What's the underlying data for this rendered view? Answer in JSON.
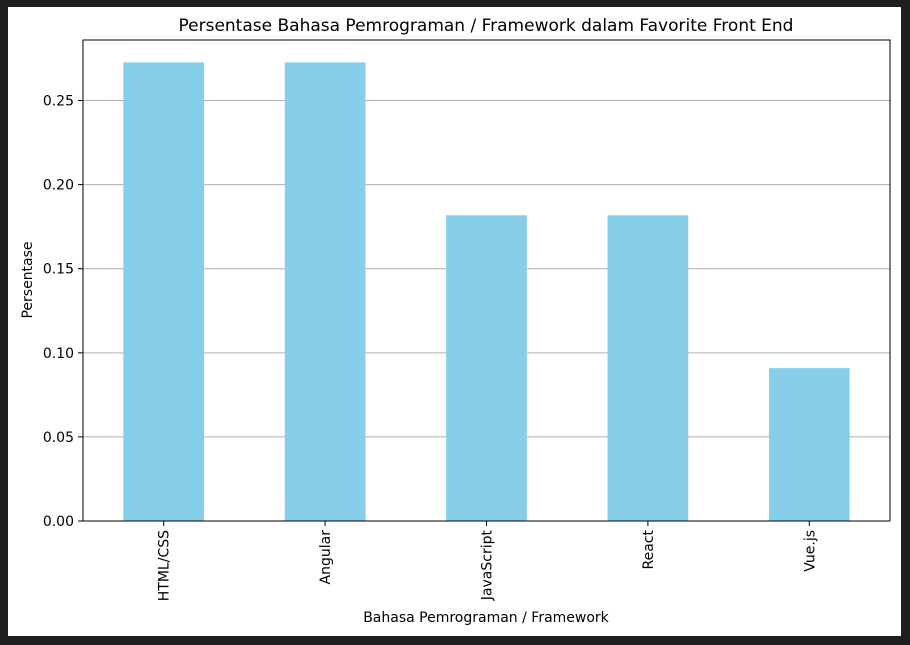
{
  "chart_data": {
    "type": "bar",
    "title": "Persentase Bahasa Pemrograman / Framework dalam Favorite Front End",
    "xlabel": "Bahasa Pemrograman / Framework",
    "ylabel": "Persentase",
    "categories": [
      "HTML/CSS",
      "Angular",
      "JavaScript",
      "React",
      "Vue.js"
    ],
    "values": [
      0.2727,
      0.2727,
      0.1818,
      0.1818,
      0.0909
    ],
    "ylim": [
      0,
      0.286
    ],
    "yticks": [
      0.0,
      0.05,
      0.1,
      0.15,
      0.2,
      0.25
    ],
    "ytick_labels": [
      "0.00",
      "0.05",
      "0.10",
      "0.15",
      "0.20",
      "0.25"
    ],
    "grid": "y-axis",
    "bar_color": "#87ceeb",
    "grid_color": "#b0b0b0",
    "background": "#ffffff"
  }
}
